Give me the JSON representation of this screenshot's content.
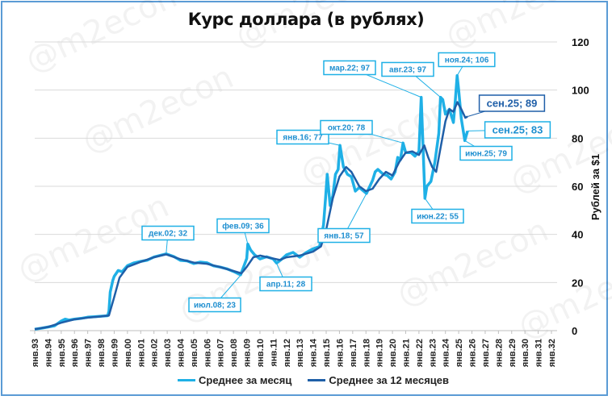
{
  "title": "Курс доллара (в рублях)",
  "yaxis_label": "Рублей за $1",
  "legend": [
    {
      "label": "Среднее за месяц",
      "color": "#1fb0e6"
    },
    {
      "label": "Среднее за 12 месяцев",
      "color": "#1f5fa8"
    }
  ],
  "watermark": "@m2econ",
  "chart_data": {
    "type": "line",
    "title": "Курс доллара (в рублях)",
    "xlabel": "",
    "ylabel": "Рублей за $1",
    "ylim": [
      0,
      120
    ],
    "yticks": [
      0,
      20,
      40,
      60,
      80,
      100,
      120
    ],
    "xticks": [
      "янв.93",
      "янв.94",
      "янв.95",
      "янв.96",
      "янв.97",
      "янв.98",
      "янв.99",
      "янв.00",
      "янв.01",
      "янв.02",
      "янв.03",
      "янв.04",
      "янв.05",
      "янв.06",
      "янв.07",
      "янв.08",
      "янв.09",
      "янв.10",
      "янв.11",
      "янв.12",
      "янв.13",
      "янв.14",
      "янв.15",
      "янв.16",
      "янв.17",
      "янв.18",
      "янв.19",
      "янв.20",
      "янв.21",
      "янв.22",
      "янв.23",
      "янв.24",
      "янв.25",
      "янв.26",
      "янв.27",
      "янв.28",
      "янв.29",
      "янв.30",
      "янв.31",
      "янв.32"
    ],
    "legend_position": "bottom",
    "grid": true,
    "series": [
      {
        "name": "Среднее за месяц",
        "color": "#1fb0e6",
        "points": [
          [
            1993.0,
            0.6
          ],
          [
            1993.5,
            1.0
          ],
          [
            1994.0,
            1.5
          ],
          [
            1994.5,
            2.0
          ],
          [
            1995.0,
            4.0
          ],
          [
            1995.3,
            4.8
          ],
          [
            1995.6,
            4.4
          ],
          [
            1996.0,
            4.8
          ],
          [
            1996.5,
            5.1
          ],
          [
            1997.0,
            5.6
          ],
          [
            1997.5,
            5.8
          ],
          [
            1998.0,
            6.0
          ],
          [
            1998.5,
            6.2
          ],
          [
            1998.6,
            8
          ],
          [
            1998.7,
            16
          ],
          [
            1998.9,
            21
          ],
          [
            1999.0,
            22.6
          ],
          [
            1999.3,
            25
          ],
          [
            1999.6,
            24.5
          ],
          [
            2000.0,
            27
          ],
          [
            2000.5,
            28.2
          ],
          [
            2001.0,
            28.8
          ],
          [
            2001.5,
            29.3
          ],
          [
            2002.0,
            30.6
          ],
          [
            2002.5,
            31.3
          ],
          [
            2002.92,
            31.9
          ],
          [
            2003.5,
            30.8
          ],
          [
            2004.0,
            29.2
          ],
          [
            2004.5,
            29.0
          ],
          [
            2005.0,
            27.9
          ],
          [
            2005.5,
            28.5
          ],
          [
            2006.0,
            28.2
          ],
          [
            2006.5,
            26.9
          ],
          [
            2007.0,
            26.4
          ],
          [
            2007.5,
            25.7
          ],
          [
            2008.0,
            24.6
          ],
          [
            2008.54,
            23.2
          ],
          [
            2008.8,
            27
          ],
          [
            2009.0,
            30
          ],
          [
            2009.08,
            36
          ],
          [
            2009.3,
            33.5
          ],
          [
            2009.6,
            31.5
          ],
          [
            2010.0,
            29.8
          ],
          [
            2010.5,
            30.7
          ],
          [
            2011.0,
            29.8
          ],
          [
            2011.25,
            28.1
          ],
          [
            2011.6,
            29.5
          ],
          [
            2012.0,
            31.5
          ],
          [
            2012.5,
            32.5
          ],
          [
            2013.0,
            30.5
          ],
          [
            2013.5,
            32.5
          ],
          [
            2014.0,
            34
          ],
          [
            2014.5,
            35
          ],
          [
            2014.8,
            44
          ],
          [
            2014.95,
            55
          ],
          [
            2015.08,
            65
          ],
          [
            2015.3,
            52
          ],
          [
            2015.5,
            56
          ],
          [
            2015.7,
            65
          ],
          [
            2015.9,
            67
          ],
          [
            2016.04,
            77
          ],
          [
            2016.3,
            68
          ],
          [
            2016.6,
            65
          ],
          [
            2016.9,
            64
          ],
          [
            2017.2,
            58
          ],
          [
            2017.5,
            59.5
          ],
          [
            2018.04,
            57
          ],
          [
            2018.5,
            62.5
          ],
          [
            2018.7,
            66
          ],
          [
            2018.9,
            67
          ],
          [
            2019.3,
            65
          ],
          [
            2019.6,
            64.5
          ],
          [
            2019.9,
            63
          ],
          [
            2020.2,
            66
          ],
          [
            2020.4,
            72
          ],
          [
            2020.6,
            71
          ],
          [
            2020.8,
            78
          ],
          [
            2021.0,
            74
          ],
          [
            2021.4,
            74
          ],
          [
            2021.7,
            72.5
          ],
          [
            2022.0,
            74.5
          ],
          [
            2022.17,
            97
          ],
          [
            2022.3,
            78
          ],
          [
            2022.45,
            55
          ],
          [
            2022.6,
            60
          ],
          [
            2022.9,
            62
          ],
          [
            2023.2,
            70
          ],
          [
            2023.5,
            82
          ],
          [
            2023.63,
            97
          ],
          [
            2023.8,
            96
          ],
          [
            2024.0,
            90
          ],
          [
            2024.3,
            92
          ],
          [
            2024.6,
            86.5
          ],
          [
            2024.75,
            96
          ],
          [
            2024.88,
            106
          ],
          [
            2025.0,
            100
          ],
          [
            2025.2,
            88
          ],
          [
            2025.46,
            79
          ],
          [
            2025.67,
            83
          ]
        ]
      },
      {
        "name": "Среднее за 12 месяцев",
        "color": "#1f5fa8",
        "points": [
          [
            1993.0,
            0.6
          ],
          [
            1994.0,
            1.5
          ],
          [
            1995.0,
            3.3
          ],
          [
            1996.0,
            4.7
          ],
          [
            1997.0,
            5.4
          ],
          [
            1998.0,
            5.9
          ],
          [
            1998.6,
            6.3
          ],
          [
            1999.0,
            14
          ],
          [
            1999.4,
            22
          ],
          [
            2000.0,
            26.5
          ],
          [
            2001.0,
            28.6
          ],
          [
            2002.0,
            30.5
          ],
          [
            2002.92,
            31.7
          ],
          [
            2004.0,
            29.7
          ],
          [
            2005.0,
            28.3
          ],
          [
            2006.0,
            27.8
          ],
          [
            2007.0,
            26.4
          ],
          [
            2008.0,
            24.8
          ],
          [
            2008.6,
            23.8
          ],
          [
            2009.0,
            26.5
          ],
          [
            2009.5,
            30.5
          ],
          [
            2010.0,
            31.2
          ],
          [
            2010.8,
            30.2
          ],
          [
            2011.5,
            29.4
          ],
          [
            2012.0,
            30.5
          ],
          [
            2013.0,
            31.2
          ],
          [
            2014.0,
            32.8
          ],
          [
            2014.6,
            35
          ],
          [
            2015.0,
            42
          ],
          [
            2015.5,
            55
          ],
          [
            2016.0,
            64
          ],
          [
            2016.5,
            68
          ],
          [
            2016.9,
            66
          ],
          [
            2017.5,
            60
          ],
          [
            2018.0,
            58
          ],
          [
            2018.5,
            59
          ],
          [
            2019.0,
            63
          ],
          [
            2019.5,
            66
          ],
          [
            2020.0,
            64.5
          ],
          [
            2020.5,
            70
          ],
          [
            2021.0,
            74
          ],
          [
            2021.5,
            74.5
          ],
          [
            2022.0,
            73
          ],
          [
            2022.4,
            77
          ],
          [
            2022.7,
            72
          ],
          [
            2023.0,
            68
          ],
          [
            2023.3,
            66
          ],
          [
            2023.6,
            75
          ],
          [
            2024.0,
            87
          ],
          [
            2024.3,
            92
          ],
          [
            2024.6,
            91
          ],
          [
            2024.9,
            95
          ],
          [
            2025.2,
            92
          ],
          [
            2025.5,
            88.5
          ],
          [
            2025.67,
            89
          ]
        ]
      }
    ],
    "annotations": [
      {
        "text": "дек.02; 32",
        "x": 2002.92,
        "y": 32,
        "series": "Среднее за месяц"
      },
      {
        "text": "июл.08; 23",
        "x": 2008.54,
        "y": 23,
        "series": "Среднее за месяц"
      },
      {
        "text": "фев.09; 36",
        "x": 2009.08,
        "y": 36,
        "series": "Среднее за месяц"
      },
      {
        "text": "апр.11; 28",
        "x": 2011.25,
        "y": 28,
        "series": "Среднее за месяц"
      },
      {
        "text": "янв.16; 77",
        "x": 2016.04,
        "y": 77,
        "series": "Среднее за месяц"
      },
      {
        "text": "янв.18; 57",
        "x": 2018.04,
        "y": 57,
        "series": "Среднее за месяц"
      },
      {
        "text": "окт.20; 78",
        "x": 2020.8,
        "y": 78,
        "series": "Среднее за месяц"
      },
      {
        "text": "мар.22; 97",
        "x": 2022.17,
        "y": 97,
        "series": "Среднее за месяц"
      },
      {
        "text": "июн.22; 55",
        "x": 2022.45,
        "y": 55,
        "series": "Среднее за месяц"
      },
      {
        "text": "авг.23; 97",
        "x": 2023.63,
        "y": 97,
        "series": "Среднее за месяц"
      },
      {
        "text": "ноя.24; 106",
        "x": 2024.88,
        "y": 106,
        "series": "Среднее за месяц"
      },
      {
        "text": "июн.25; 79",
        "x": 2025.46,
        "y": 79,
        "series": "Среднее за месяц"
      },
      {
        "text": "сен.25; 83",
        "x": 2025.67,
        "y": 83,
        "series": "Среднее за месяц"
      },
      {
        "text": "сен.25; 89",
        "x": 2025.67,
        "y": 89,
        "series": "Среднее за 12 месяцев"
      }
    ]
  }
}
